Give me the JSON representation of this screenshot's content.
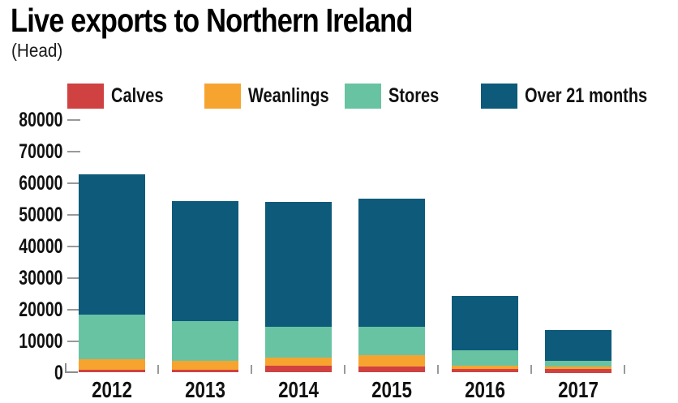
{
  "title": "Live exports to Northern Ireland",
  "subtitle": "(Head)",
  "colors": {
    "calves": "#d04141",
    "weanlings": "#f6a42f",
    "stores": "#68c3a3",
    "over_21_months": "#0d5a7a",
    "axis_ticks": "#999999",
    "text": "#111111",
    "background": "#ffffff"
  },
  "chart_data": {
    "type": "bar",
    "stacked": true,
    "title": "Live exports to Northern Ireland",
    "units_label": "(Head)",
    "categories": [
      "2012",
      "2013",
      "2014",
      "2015",
      "2016",
      "2017"
    ],
    "series": [
      {
        "name": "Calves",
        "color": "#d04141",
        "values": [
          1000,
          800,
          2200,
          2000,
          1150,
          1250
        ]
      },
      {
        "name": "Weanlings",
        "color": "#f6a42f",
        "values": [
          3200,
          2850,
          2650,
          3450,
          1100,
          700
        ]
      },
      {
        "name": "Stores",
        "color": "#68c3a3",
        "values": [
          14150,
          12750,
          9600,
          9000,
          4900,
          1700
        ]
      },
      {
        "name": "Over 21 months",
        "color": "#0d5a7a",
        "values": [
          44250,
          37900,
          39650,
          40650,
          17150,
          9900
        ]
      }
    ],
    "totals_estimated": [
      62600,
      54300,
      54100,
      55100,
      24300,
      13550
    ],
    "ylim": [
      0,
      80000
    ],
    "yticks": [
      0,
      10000,
      20000,
      30000,
      40000,
      50000,
      60000,
      70000,
      80000
    ],
    "xlabel": "",
    "ylabel": "",
    "grid": false,
    "legend_position": "top"
  }
}
